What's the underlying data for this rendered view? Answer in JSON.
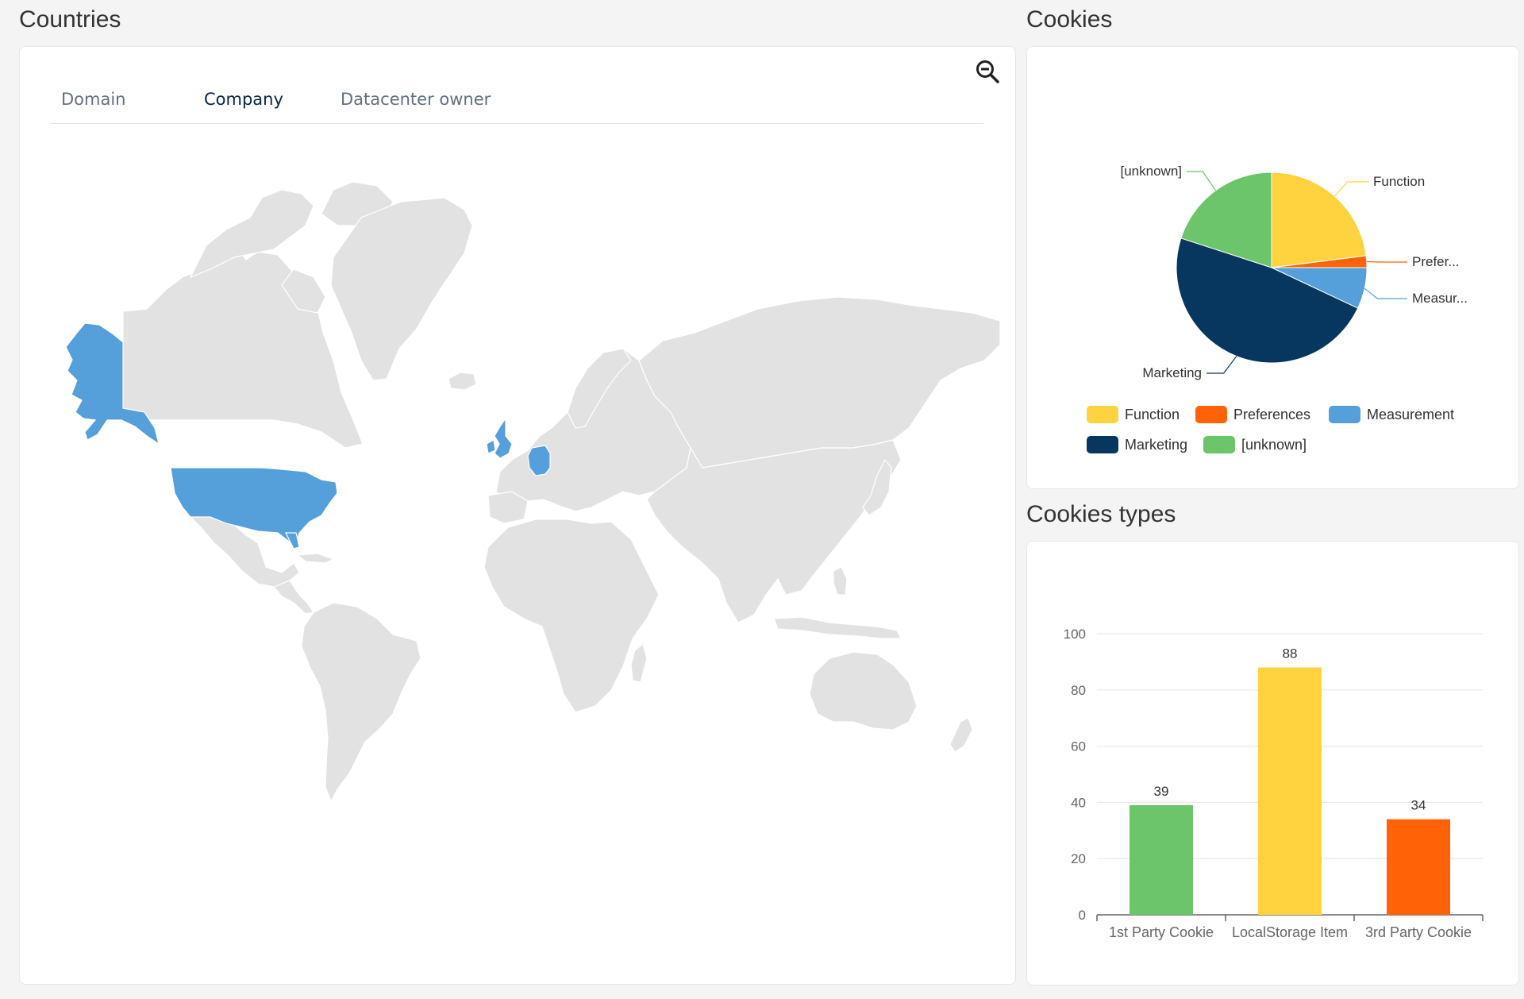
{
  "countries": {
    "title": "Countries",
    "tabs": [
      {
        "label": "Domain",
        "active": false
      },
      {
        "label": "Company",
        "active": true
      },
      {
        "label": "Datacenter owner",
        "active": false
      }
    ],
    "zoom_icon": "zoom-out-icon",
    "highlighted_regions": [
      "Alaska",
      "United States",
      "United Kingdom",
      "Ireland",
      "Germany"
    ],
    "highlight_color": "#559fdb",
    "land_color": "#e2e2e2"
  },
  "cookies": {
    "title": "Cookies",
    "chart_data": {
      "type": "pie",
      "slices": [
        {
          "label": "Function",
          "callout": "Function",
          "value": 23,
          "color": "#ffd23f"
        },
        {
          "label": "Preferences",
          "callout": "Prefer...",
          "value": 2,
          "color": "#ff6207"
        },
        {
          "label": "Measurement",
          "callout": "Measur...",
          "value": 7,
          "color": "#559fdb"
        },
        {
          "label": "Marketing",
          "callout": "Marketing",
          "value": 48,
          "color": "#07375f"
        },
        {
          "label": "[unknown]",
          "callout": "[unknown]",
          "value": 20,
          "color": "#6cc46b"
        }
      ],
      "legend": [
        "Function",
        "Preferences",
        "Measurement",
        "Marketing",
        "[unknown]"
      ],
      "legend_position": "bottom"
    }
  },
  "cookie_types": {
    "title": "Cookies types",
    "chart_data": {
      "type": "bar",
      "categories": [
        "1st Party Cookie",
        "LocalStorage Item",
        "3rd Party Cookie"
      ],
      "values": [
        39,
        88,
        34
      ],
      "colors": [
        "#6cc46b",
        "#ffd23f",
        "#ff6207"
      ],
      "ylim": [
        0,
        100
      ],
      "yticks": [
        0,
        20,
        40,
        60,
        80,
        100
      ],
      "grid": true
    }
  }
}
